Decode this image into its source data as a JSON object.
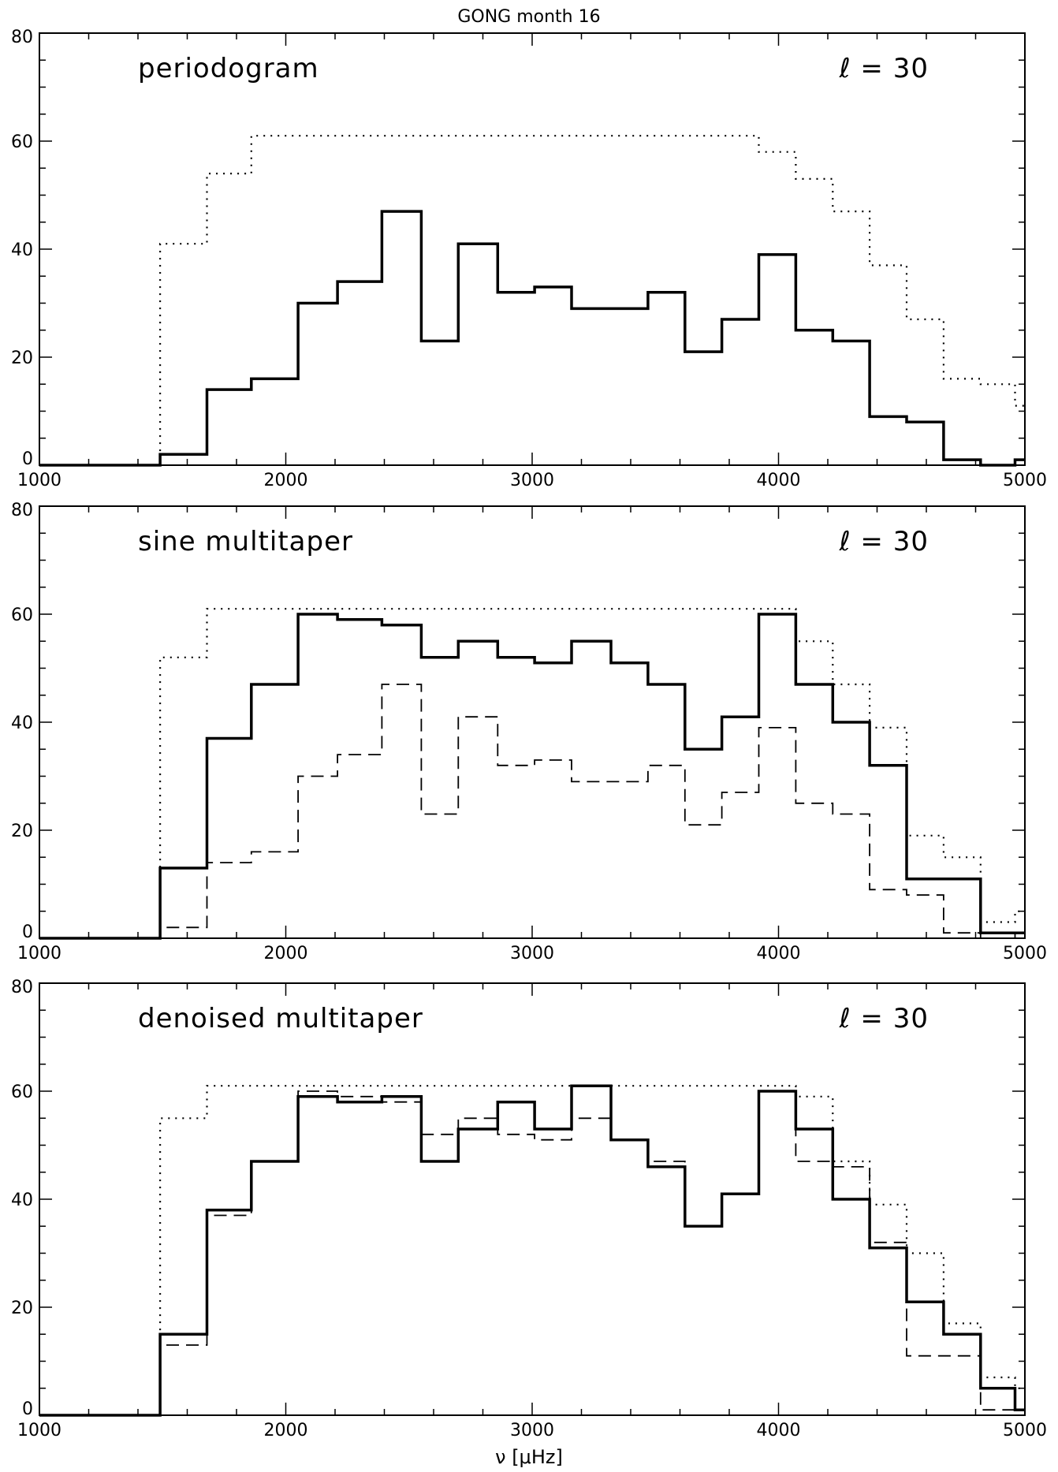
{
  "figure_title": "GONG  month 16",
  "xlabel": "ν  [μHz]",
  "chart_data": [
    {
      "type": "line",
      "step": true,
      "panel_label": "periodogram",
      "ell_label": "ℓ = 30",
      "xlim": [
        1000,
        5000
      ],
      "ylim": [
        0,
        80
      ],
      "xticks": [
        1000,
        2000,
        3000,
        4000,
        5000
      ],
      "yticks": [
        0,
        20,
        40,
        60,
        80
      ],
      "bin_edges": [
        1000,
        1150,
        1300,
        1490,
        1680,
        1860,
        2050,
        2210,
        2390,
        2550,
        2700,
        2860,
        3010,
        3160,
        3320,
        3470,
        3620,
        3770,
        3920,
        4070,
        4220,
        4370,
        4520,
        4670,
        4820,
        4960,
        5000
      ],
      "series": [
        {
          "style": "solid",
          "values": [
            0,
            0,
            0,
            2,
            14,
            16,
            30,
            34,
            47,
            23,
            41,
            32,
            33,
            29,
            29,
            32,
            21,
            27,
            39,
            25,
            23,
            9,
            8,
            1,
            0,
            1
          ]
        },
        {
          "style": "dotted",
          "values": [
            0,
            0,
            0,
            41,
            54,
            61,
            61,
            61,
            61,
            61,
            61,
            61,
            61,
            61,
            61,
            61,
            61,
            61,
            58,
            53,
            47,
            37,
            27,
            16,
            15,
            11
          ]
        }
      ]
    },
    {
      "type": "line",
      "step": true,
      "panel_label": "sine multitaper",
      "ell_label": "ℓ = 30",
      "xlim": [
        1000,
        5000
      ],
      "ylim": [
        0,
        80
      ],
      "xticks": [
        1000,
        2000,
        3000,
        4000,
        5000
      ],
      "yticks": [
        0,
        20,
        40,
        60,
        80
      ],
      "bin_edges": [
        1000,
        1150,
        1300,
        1490,
        1680,
        1860,
        2050,
        2210,
        2390,
        2550,
        2700,
        2860,
        3010,
        3160,
        3320,
        3470,
        3620,
        3770,
        3920,
        4070,
        4220,
        4370,
        4520,
        4670,
        4820,
        4960,
        5000
      ],
      "series": [
        {
          "style": "solid",
          "values": [
            0,
            0,
            0,
            13,
            37,
            47,
            60,
            59,
            58,
            52,
            55,
            52,
            51,
            55,
            51,
            47,
            35,
            41,
            60,
            47,
            40,
            32,
            11,
            11,
            1,
            1
          ]
        },
        {
          "style": "dashed",
          "values": [
            0,
            0,
            0,
            2,
            14,
            16,
            30,
            34,
            47,
            23,
            41,
            32,
            33,
            29,
            29,
            32,
            21,
            27,
            39,
            25,
            23,
            9,
            8,
            1,
            0,
            1
          ]
        },
        {
          "style": "dotted",
          "values": [
            0,
            0,
            0,
            52,
            61,
            61,
            61,
            61,
            61,
            61,
            61,
            61,
            61,
            61,
            61,
            61,
            61,
            61,
            61,
            55,
            47,
            39,
            19,
            15,
            3,
            5
          ]
        }
      ]
    },
    {
      "type": "line",
      "step": true,
      "panel_label": "denoised multitaper",
      "ell_label": "ℓ = 30",
      "xlim": [
        1000,
        5000
      ],
      "ylim": [
        0,
        80
      ],
      "xticks": [
        1000,
        2000,
        3000,
        4000,
        5000
      ],
      "yticks": [
        0,
        20,
        40,
        60,
        80
      ],
      "bin_edges": [
        1000,
        1150,
        1300,
        1490,
        1680,
        1860,
        2050,
        2210,
        2390,
        2550,
        2700,
        2860,
        3010,
        3160,
        3320,
        3470,
        3620,
        3770,
        3920,
        4070,
        4220,
        4370,
        4520,
        4670,
        4820,
        4960,
        5000
      ],
      "series": [
        {
          "style": "solid",
          "values": [
            0,
            0,
            0,
            15,
            38,
            47,
            59,
            58,
            59,
            47,
            53,
            58,
            53,
            61,
            51,
            46,
            35,
            41,
            60,
            53,
            40,
            31,
            21,
            15,
            5,
            1
          ]
        },
        {
          "style": "dashed",
          "values": [
            0,
            0,
            0,
            13,
            37,
            47,
            60,
            59,
            58,
            52,
            55,
            52,
            51,
            55,
            51,
            47,
            35,
            41,
            60,
            47,
            46,
            32,
            11,
            11,
            1,
            1
          ]
        },
        {
          "style": "dotted",
          "values": [
            0,
            0,
            0,
            55,
            61,
            61,
            61,
            61,
            61,
            61,
            61,
            61,
            61,
            61,
            61,
            61,
            61,
            61,
            61,
            59,
            47,
            39,
            30,
            17,
            7,
            5
          ]
        }
      ]
    }
  ]
}
